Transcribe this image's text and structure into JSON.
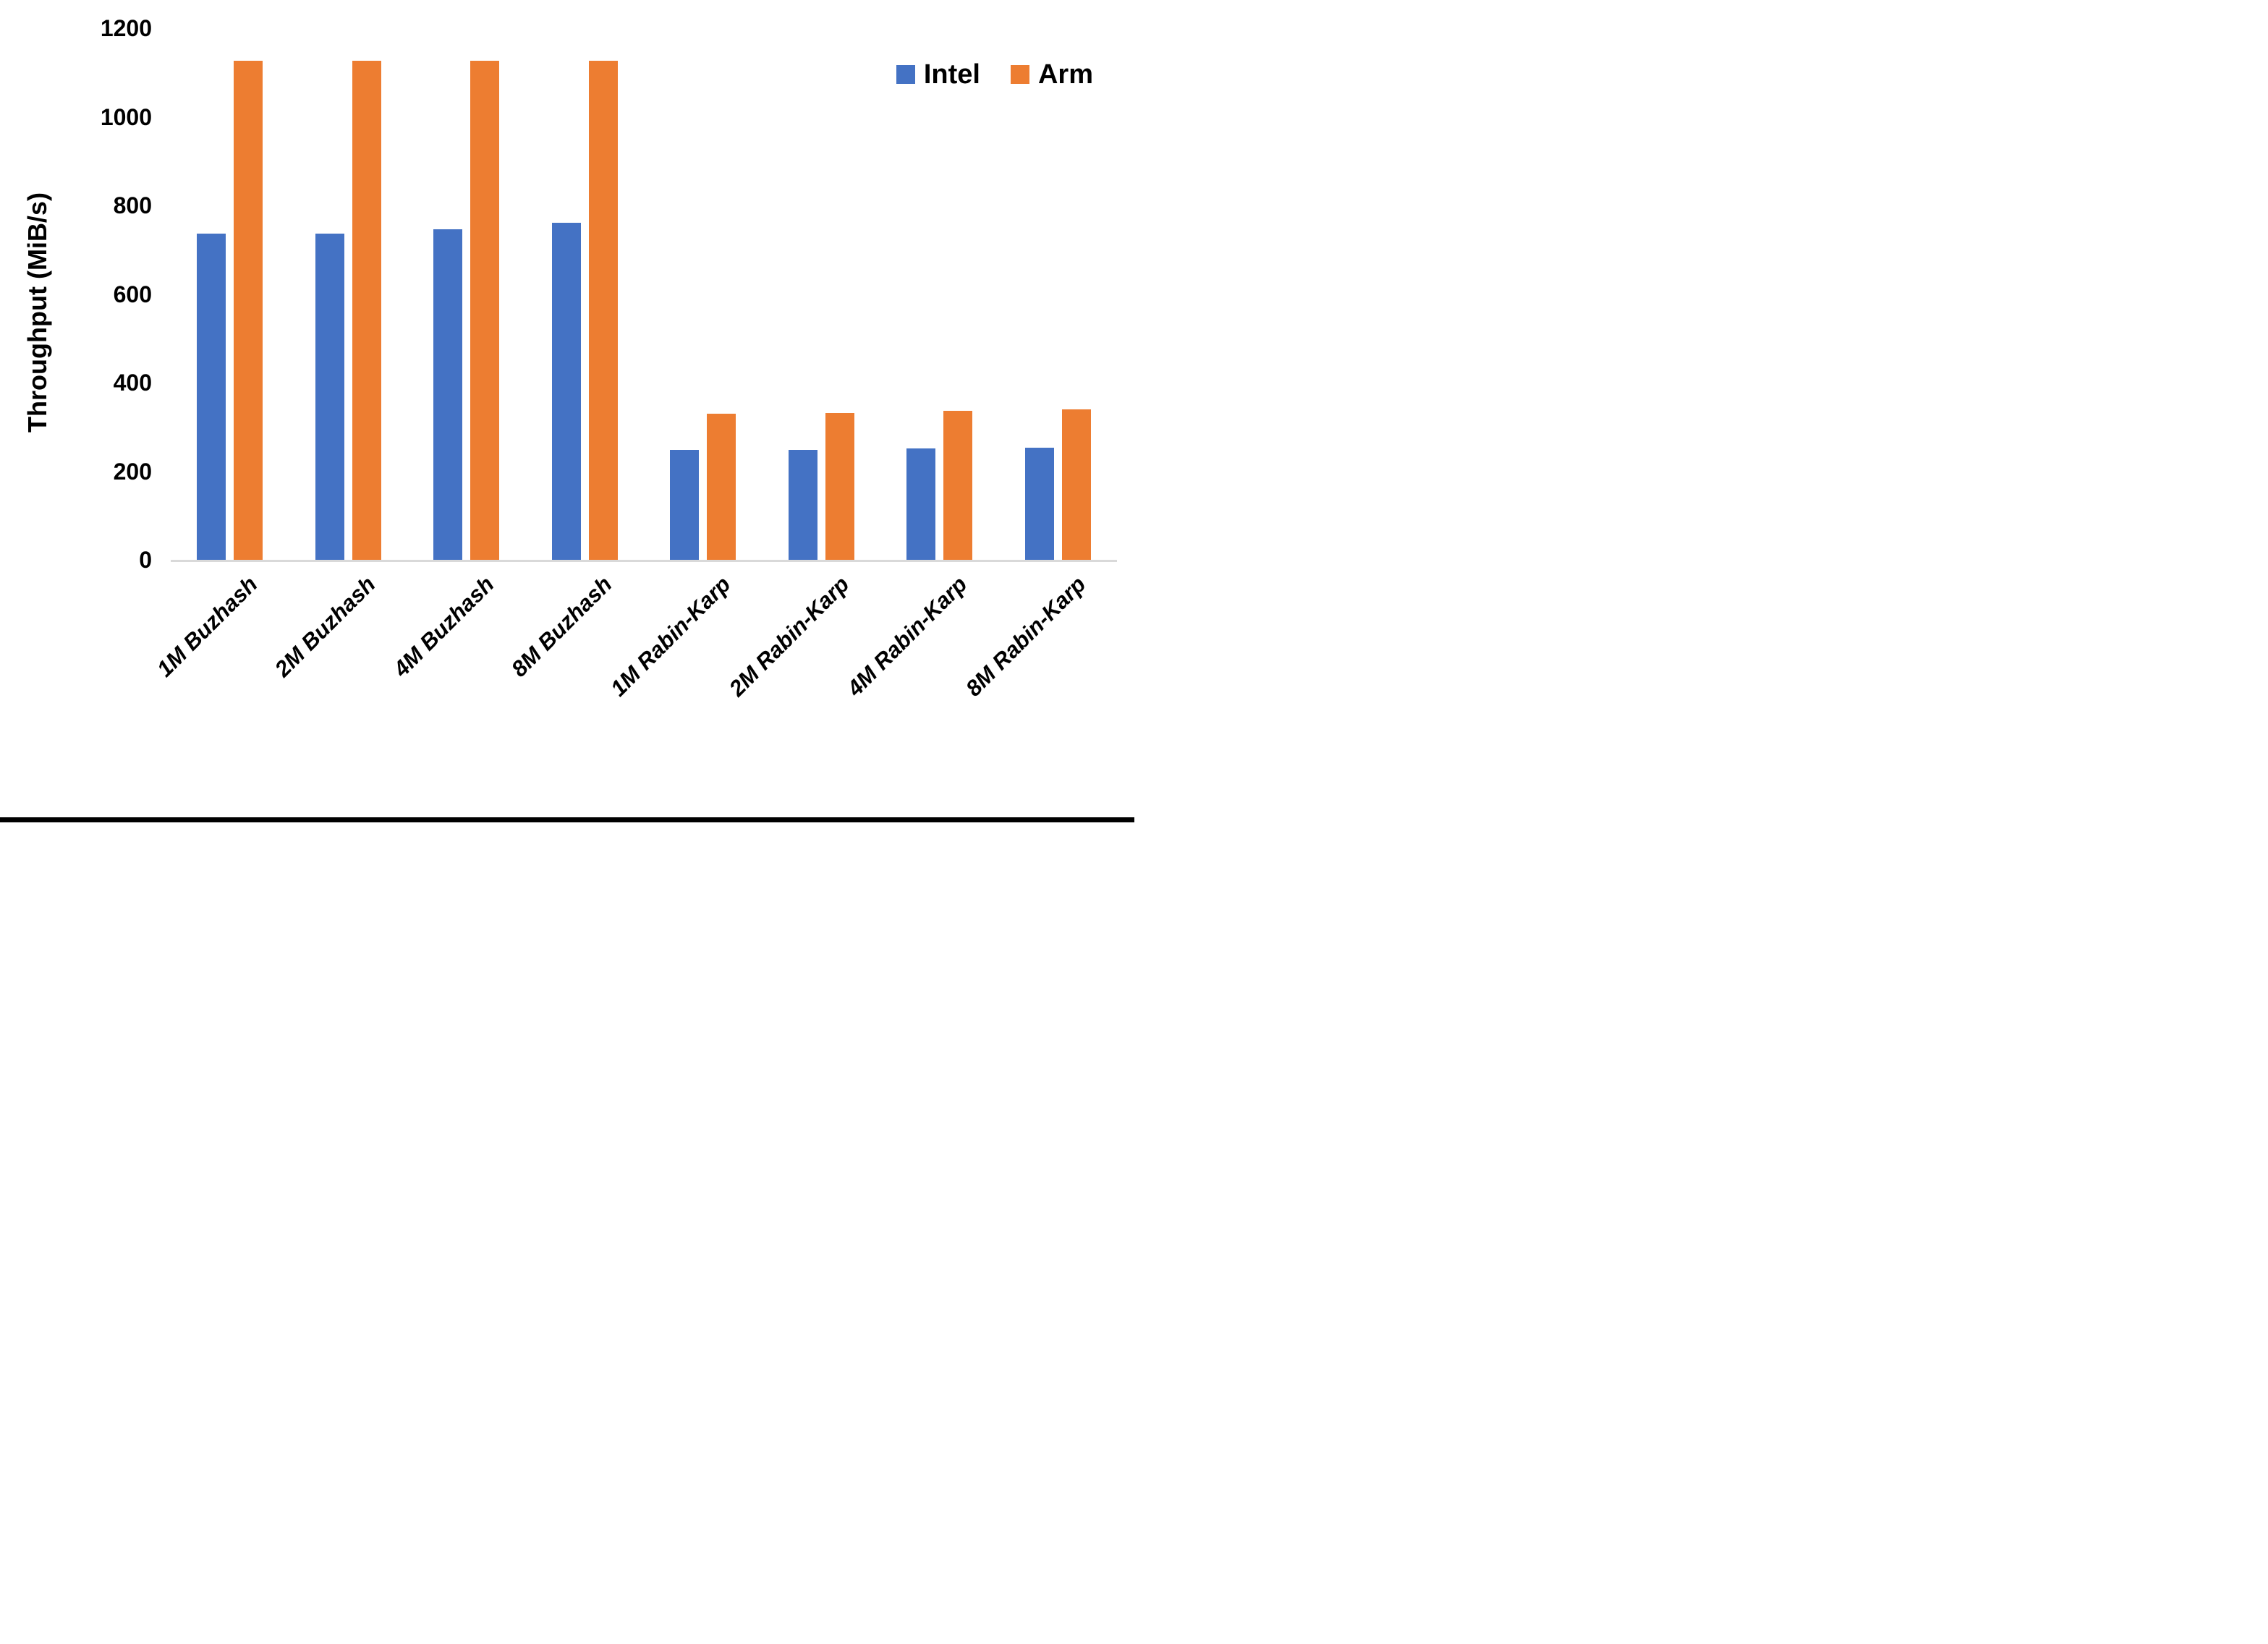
{
  "chart_data": {
    "type": "bar",
    "title": "",
    "ylabel": "Throughput (MiB/s)",
    "xlabel": "",
    "ylim": [
      0,
      1200
    ],
    "yticks": [
      0,
      200,
      400,
      600,
      800,
      1000,
      1200
    ],
    "grid": false,
    "legend_position": "top-right",
    "categories": [
      "1M Buzhash",
      "2M Buzhash",
      "4M Buzhash",
      "8M Buzhash",
      "1M Rabin-Karp",
      "2M Rabin-Karp",
      "4M Rabin-Karp",
      "8M Rabin-Karp"
    ],
    "series": [
      {
        "name": "Intel",
        "color": "#4472C4",
        "values": [
          737,
          736,
          746,
          761,
          248,
          249,
          251,
          253
        ]
      },
      {
        "name": "Arm",
        "color": "#ED7D31",
        "values": [
          1126,
          1126,
          1126,
          1126,
          330,
          332,
          336,
          339
        ]
      }
    ],
    "colors": {
      "intel": "#4472C4",
      "arm": "#ED7D31",
      "axis_line": "#D9D9D9",
      "text": "#000000"
    }
  }
}
